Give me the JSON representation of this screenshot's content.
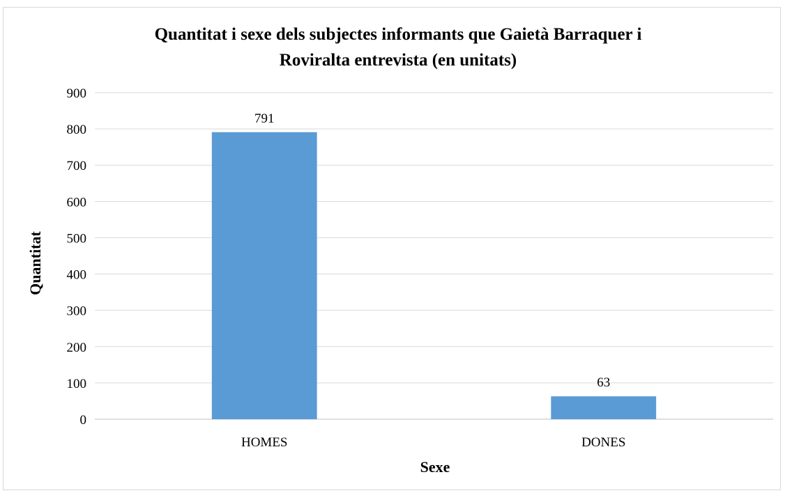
{
  "chart_data": {
    "type": "bar",
    "title_lines": [
      "Quantitat i sexe dels subjectes informants que Gaietà Barraquer i",
      "Roviralta entrevista (en unitats)"
    ],
    "xlabel": "Sexe",
    "ylabel": "Quantitat",
    "categories": [
      "HOMES",
      "DONES"
    ],
    "values": [
      791,
      63
    ],
    "data_labels": [
      "791",
      "63"
    ],
    "ylim": [
      0,
      900
    ],
    "yticks": [
      0,
      100,
      200,
      300,
      400,
      500,
      600,
      700,
      800,
      900
    ],
    "grid": true,
    "legend": "none",
    "bar_color": "#5b9bd5"
  }
}
